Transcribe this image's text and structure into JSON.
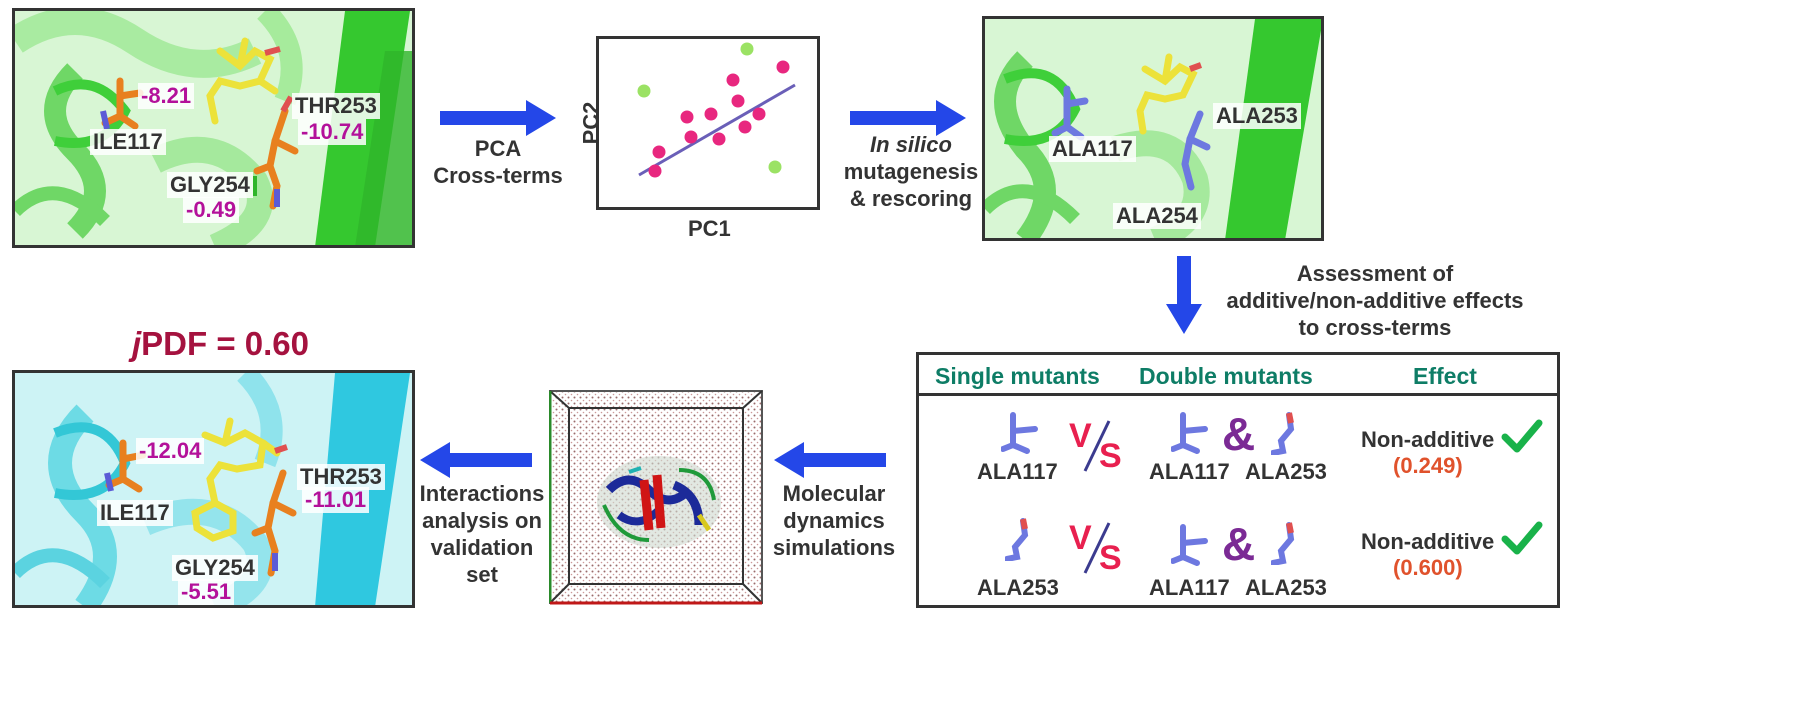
{
  "panels": {
    "top_left": {
      "ile": "ILE117",
      "ile_val": "-8.21",
      "thr": "THR253",
      "thr_val": "-10.74",
      "gly": "GLY254",
      "gly_val": "-0.49"
    },
    "top_right": {
      "a117": "ALA117",
      "a253": "ALA253",
      "a254": "ALA254"
    },
    "bottom_left": {
      "title_italic": "j",
      "title_rest": "PDF = 0.60",
      "ile": "ILE117",
      "ile_val": "-12.04",
      "thr": "THR253",
      "thr_val": "-11.01",
      "gly": "GLY254",
      "gly_val": "-5.51"
    }
  },
  "pca_plot": {
    "xlabel": "PC1",
    "ylabel": "PC2"
  },
  "arrows": {
    "pca_line1": "PCA",
    "pca_line2": "Cross-terms",
    "silico_italic": "In silico",
    "silico_line2": "mutagenesis",
    "silico_line3": "& rescoring",
    "assess_line1": "Assessment of",
    "assess_line2": "additive/non-additive effects",
    "assess_line3": "to cross-terms",
    "md_line1": "Molecular",
    "md_line2": "dynamics",
    "md_line3": "simulations",
    "ia_line1": "Interactions",
    "ia_line2": "analysis on",
    "ia_line3": "validation",
    "ia_line4": "set"
  },
  "table": {
    "headers": [
      "Single mutants",
      "Double mutants",
      "Effect"
    ],
    "rows": [
      {
        "single": "ALA117",
        "vs_v": "V",
        "vs_s": "S",
        "double_a": "ALA117",
        "amp": "&",
        "double_b": "ALA253",
        "effect": "Non-additive",
        "value": "(0.249)"
      },
      {
        "single": "ALA253",
        "vs_v": "V",
        "vs_s": "S",
        "double_a": "ALA117",
        "amp": "&",
        "double_b": "ALA253",
        "effect": "Non-additive",
        "value": "(0.600)"
      }
    ]
  },
  "colors": {
    "arrow": "#2447e8",
    "value": "#b3119a",
    "header": "#0e7d66",
    "effect_value": "#e0522c",
    "check": "#19b24a"
  }
}
